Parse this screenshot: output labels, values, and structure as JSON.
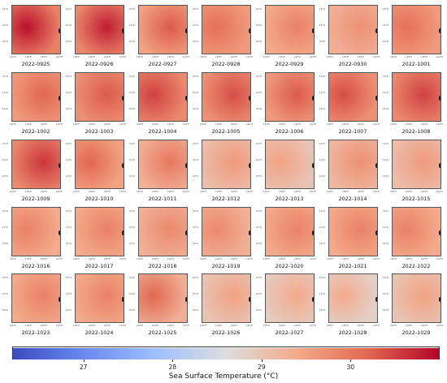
{
  "maps": [
    {
      "date": "2022-0925",
      "fill": 29.9,
      "hot": 30.9
    },
    {
      "date": "2022-0926",
      "fill": 29.8,
      "hot": 30.8
    },
    {
      "date": "2022-0927",
      "fill": 29.5,
      "hot": 30.3
    },
    {
      "date": "2022-0928",
      "fill": 29.6,
      "hot": 30.1
    },
    {
      "date": "2022-0929",
      "fill": 29.4,
      "hot": 29.9
    },
    {
      "date": "2022-0930",
      "fill": 29.3,
      "hot": 29.7
    },
    {
      "date": "2022-1001",
      "fill": 29.6,
      "hot": 30.1
    },
    {
      "date": "2022-1002",
      "fill": 29.6,
      "hot": 30.2
    },
    {
      "date": "2022-1003",
      "fill": 29.7,
      "hot": 30.3
    },
    {
      "date": "2022-1004",
      "fill": 29.8,
      "hot": 30.5
    },
    {
      "date": "2022-1005",
      "fill": 29.7,
      "hot": 30.4
    },
    {
      "date": "2022-1006",
      "fill": 29.6,
      "hot": 30.3
    },
    {
      "date": "2022-1007",
      "fill": 29.7,
      "hot": 30.4
    },
    {
      "date": "2022-1008",
      "fill": 29.8,
      "hot": 30.5
    },
    {
      "date": "2022-1009",
      "fill": 29.8,
      "hot": 30.6
    },
    {
      "date": "2022-1010",
      "fill": 29.5,
      "hot": 30.2
    },
    {
      "date": "2022-1011",
      "fill": 29.3,
      "hot": 30.0
    },
    {
      "date": "2022-1012",
      "fill": 29.1,
      "hot": 29.6
    },
    {
      "date": "2022-1013",
      "fill": 29.0,
      "hot": 29.5
    },
    {
      "date": "2022-1014",
      "fill": 29.2,
      "hot": 29.7
    },
    {
      "date": "2022-1015",
      "fill": 29.1,
      "hot": 29.6
    },
    {
      "date": "2022-1016",
      "fill": 29.4,
      "hot": 29.9
    },
    {
      "date": "2022-1017",
      "fill": 29.4,
      "hot": 29.9
    },
    {
      "date": "2022-1018",
      "fill": 29.3,
      "hot": 29.8
    },
    {
      "date": "2022-1019",
      "fill": 29.3,
      "hot": 29.8
    },
    {
      "date": "2022-1020",
      "fill": 29.4,
      "hot": 29.9
    },
    {
      "date": "2022-1021",
      "fill": 29.4,
      "hot": 29.9
    },
    {
      "date": "2022-1022",
      "fill": 29.4,
      "hot": 29.9
    },
    {
      "date": "2022-1023",
      "fill": 29.4,
      "hot": 29.9
    },
    {
      "date": "2022-1024",
      "fill": 29.4,
      "hot": 29.9
    },
    {
      "date": "2022-1025",
      "fill": 29.3,
      "hot": 30.2
    },
    {
      "date": "2022-1026",
      "fill": 29.0,
      "hot": 29.5
    },
    {
      "date": "2022-1027",
      "fill": 28.9,
      "hot": 29.4
    },
    {
      "date": "2022-1028",
      "fill": 28.8,
      "hot": 29.4
    },
    {
      "date": "2022-1029",
      "fill": 29.0,
      "hot": 29.5
    }
  ],
  "map_axes": {
    "ylabels": [
      "14°N",
      "12°N",
      "10°N"
    ],
    "xlabels": [
      "116°E",
      "118°E",
      "120°E",
      "122°E"
    ]
  },
  "chart_data": {
    "type": "heatmap",
    "layout": "5 rows x 7 columns of daily maps",
    "colormap": "coolwarm",
    "colorbar": {
      "label": "Sea Surface Temperature (°C)",
      "ticks": [
        27,
        28,
        29,
        30
      ],
      "vmin": 26.2,
      "vmax": 31.0,
      "low_color": "#3b4cc0",
      "mid_color": "#dddddd",
      "high_color": "#b40426"
    }
  }
}
